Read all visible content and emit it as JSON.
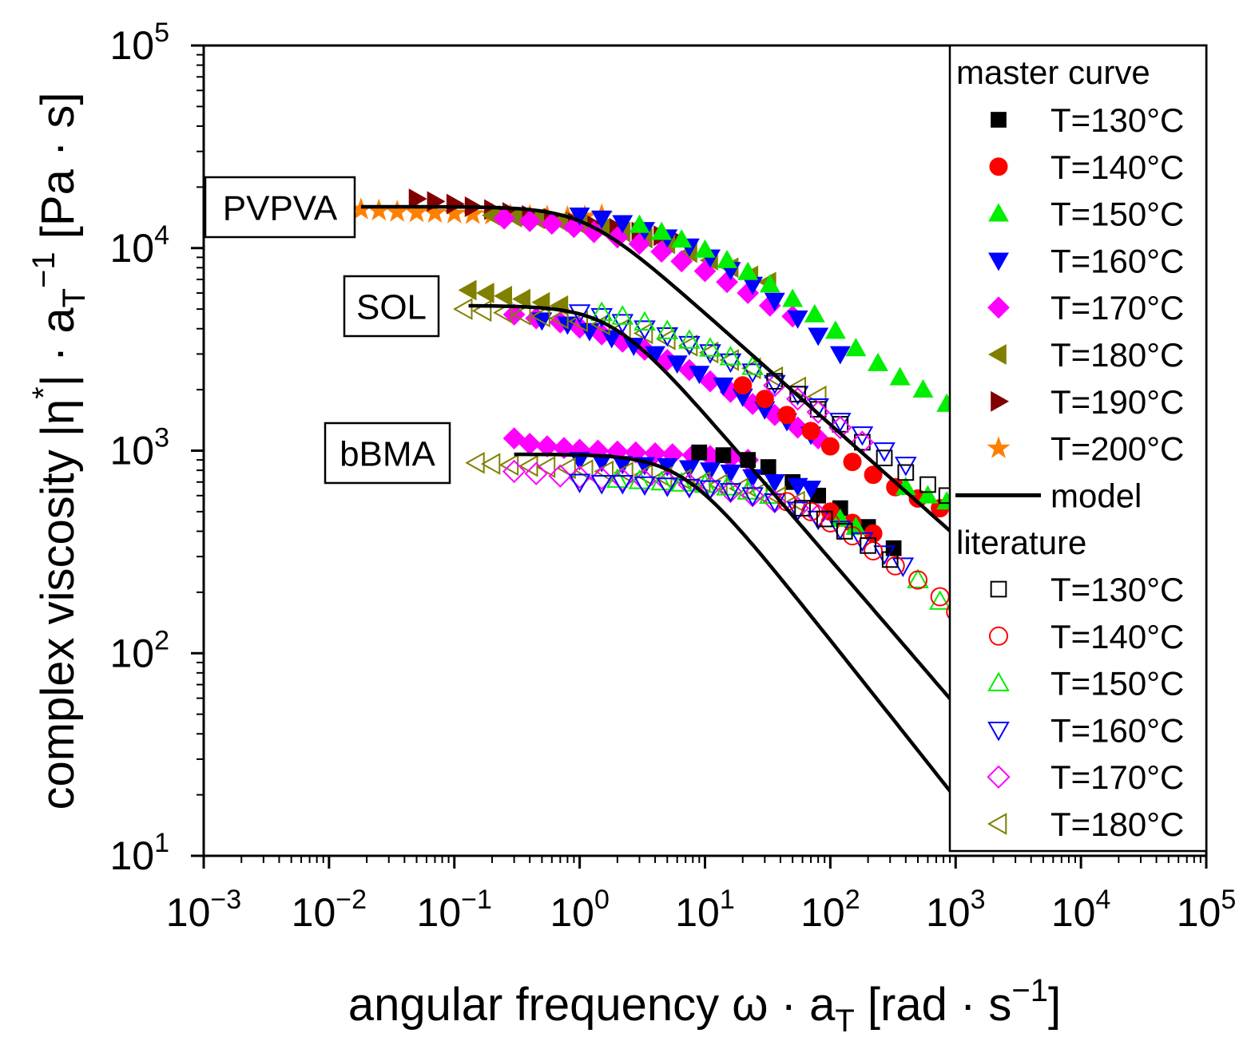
{
  "chart_data": {
    "type": "scatter",
    "scale": "log-log",
    "xlabel": {
      "main": "angular frequency ω · a",
      "sub": "T",
      "unit_open": " [rad · s",
      "unit_sup": "−1",
      "unit_close": "]"
    },
    "ylabel": {
      "main": "complex viscosity |η",
      "sup_star": "*",
      "mid": "| · a",
      "sub": "T",
      "sup": "−1",
      "unit": " [Pa · s]"
    },
    "xlim_exp": [
      -3,
      5
    ],
    "ylim_exp": [
      1,
      5
    ],
    "x_ticks": [
      {
        "base": "10",
        "exp": "−3"
      },
      {
        "base": "10",
        "exp": "−2"
      },
      {
        "base": "10",
        "exp": "−1"
      },
      {
        "base": "10",
        "exp": "0"
      },
      {
        "base": "10",
        "exp": "1"
      },
      {
        "base": "10",
        "exp": "2"
      },
      {
        "base": "10",
        "exp": "3"
      },
      {
        "base": "10",
        "exp": "4"
      },
      {
        "base": "10",
        "exp": "5"
      }
    ],
    "y_ticks": [
      {
        "base": "10",
        "exp": "1"
      },
      {
        "base": "10",
        "exp": "2"
      },
      {
        "base": "10",
        "exp": "3"
      },
      {
        "base": "10",
        "exp": "4"
      },
      {
        "base": "10",
        "exp": "5"
      }
    ],
    "legend": {
      "placement": "top-right",
      "master_title": "master curve",
      "literature_title": "literature",
      "master": [
        {
          "label": "T=130°C",
          "marker": "square",
          "color": "#000000",
          "filled": true
        },
        {
          "label": "T=140°C",
          "marker": "circle",
          "color": "#ff0000",
          "filled": true
        },
        {
          "label": "T=150°C",
          "marker": "triangle-up",
          "color": "#00ee00",
          "filled": true
        },
        {
          "label": "T=160°C",
          "marker": "triangle-down",
          "color": "#0000ff",
          "filled": true
        },
        {
          "label": "T=170°C",
          "marker": "diamond",
          "color": "#ff00ff",
          "filled": true
        },
        {
          "label": "T=180°C",
          "marker": "triangle-left",
          "color": "#808000",
          "filled": true
        },
        {
          "label": "T=190°C",
          "marker": "triangle-right",
          "color": "#800000",
          "filled": true
        },
        {
          "label": "T=200°C",
          "marker": "star",
          "color": "#ff8000",
          "filled": true
        }
      ],
      "model_label": "model",
      "literature": [
        {
          "label": "T=130°C",
          "marker": "square",
          "color": "#000000",
          "filled": false
        },
        {
          "label": "T=140°C",
          "marker": "circle",
          "color": "#ff0000",
          "filled": false
        },
        {
          "label": "T=150°C",
          "marker": "triangle-up",
          "color": "#00ee00",
          "filled": false
        },
        {
          "label": "T=160°C",
          "marker": "triangle-down",
          "color": "#0000ff",
          "filled": false
        },
        {
          "label": "T=170°C",
          "marker": "diamond",
          "color": "#ff00ff",
          "filled": false
        },
        {
          "label": "T=180°C",
          "marker": "triangle-left",
          "color": "#808000",
          "filled": false
        }
      ]
    },
    "annotations": [
      {
        "label": "PVPVA",
        "at_x": 0.02,
        "at_y": 16000
      },
      {
        "label": "SOL",
        "at_x": 0.13,
        "at_y": 5200
      },
      {
        "label": "bBMA",
        "at_x": 0.28,
        "at_y": 960
      }
    ],
    "models": [
      {
        "name": "PVPVA",
        "eta0": 16000,
        "lambda": 0.9,
        "n": 0.45,
        "x_range": [
          0.018,
          1000
        ]
      },
      {
        "name": "SOL",
        "eta0": 5200,
        "lambda": 0.55,
        "n": 0.28,
        "x_range": [
          0.13,
          1000
        ]
      },
      {
        "name": "bBMA",
        "eta0": 960,
        "lambda": 0.15,
        "n": 0.22,
        "x_range": [
          0.3,
          1000
        ]
      }
    ],
    "series": [
      {
        "name": "PVPVA master T=200°C",
        "marker": "star",
        "color": "#ff8000",
        "filled": true,
        "x": [
          0.018,
          0.025,
          0.035,
          0.05,
          0.07,
          0.1,
          0.14,
          0.2,
          0.28,
          0.4,
          0.55,
          0.8,
          1.1,
          1.5
        ],
        "y": [
          15500,
          15300,
          15100,
          15000,
          14900,
          14800,
          14700,
          14600,
          14500,
          14400,
          14300,
          14200,
          14300,
          14500
        ]
      },
      {
        "name": "PVPVA master T=190°C",
        "marker": "triangle-right",
        "color": "#800000",
        "filled": true,
        "x": [
          0.05,
          0.07,
          0.1,
          0.14,
          0.2,
          0.28,
          0.4,
          0.6,
          0.9,
          1.3,
          2,
          3,
          4.5,
          6
        ],
        "y": [
          17500,
          17000,
          16500,
          16000,
          15500,
          15000,
          14500,
          14000,
          13500,
          13000,
          12500,
          12000,
          11500,
          11000
        ]
      },
      {
        "name": "PVPVA master T=180°C",
        "marker": "triangle-left",
        "color": "#808000",
        "filled": true,
        "x": [
          0.2,
          0.3,
          0.45,
          0.7,
          1,
          1.5,
          2.2,
          3.3,
          5,
          7.5,
          11,
          16,
          23,
          32
        ],
        "y": [
          14500,
          14200,
          14000,
          13500,
          13000,
          12500,
          12000,
          11200,
          10500,
          9500,
          8700,
          8000,
          7300,
          6800
        ]
      },
      {
        "name": "PVPVA master T=170°C",
        "marker": "diamond",
        "color": "#ff00ff",
        "filled": true,
        "x": [
          0.25,
          0.4,
          0.6,
          0.9,
          1.3,
          2,
          3,
          4.5,
          6.5,
          10,
          15,
          22,
          33,
          50
        ],
        "y": [
          14000,
          13600,
          13200,
          12700,
          12000,
          11300,
          10500,
          9600,
          8600,
          7700,
          6800,
          6000,
          5200,
          4600
        ]
      },
      {
        "name": "PVPVA master T=160°C",
        "marker": "triangle-down",
        "color": "#0000ff",
        "filled": true,
        "x": [
          1,
          1.5,
          2.2,
          3.3,
          5,
          7.5,
          11,
          16,
          24,
          36,
          55,
          80,
          120
        ],
        "y": [
          14500,
          14000,
          13300,
          12300,
          11300,
          10200,
          9000,
          7800,
          6600,
          5500,
          4500,
          3700,
          3000
        ]
      },
      {
        "name": "PVPVA master T=150°C",
        "marker": "triangle-up",
        "color": "#00ee00",
        "filled": true,
        "x": [
          3,
          4.5,
          6.5,
          10,
          15,
          22,
          33,
          50,
          75,
          110,
          160,
          240,
          360,
          550,
          850
        ],
        "y": [
          13000,
          12000,
          11000,
          9800,
          8700,
          7600,
          6600,
          5600,
          4700,
          3900,
          3200,
          2700,
          2300,
          2000,
          1700
        ]
      },
      {
        "name": "SOL master T=180°C",
        "marker": "triangle-left",
        "color": "#808000",
        "filled": true,
        "x": [
          0.13,
          0.18,
          0.25,
          0.35,
          0.5,
          0.7
        ],
        "y": [
          6200,
          6000,
          5800,
          5600,
          5400,
          5200
        ]
      },
      {
        "name": "SOL master T=170°C",
        "marker": "diamond",
        "color": "#ff00ff",
        "filled": true,
        "x": [
          0.3,
          0.45,
          0.7,
          1,
          1.5,
          2.2,
          3.3,
          5,
          7.5,
          11,
          16,
          24,
          36,
          55,
          80
        ],
        "y": [
          4700,
          4500,
          4300,
          4050,
          3750,
          3450,
          3150,
          2800,
          2500,
          2200,
          1950,
          1700,
          1500,
          1300,
          1150
        ]
      },
      {
        "name": "SOL master T=160°C",
        "marker": "triangle-down",
        "color": "#0000ff",
        "filled": true,
        "x": [
          0.5,
          0.8,
          1.2,
          1.8,
          2.7,
          4,
          6,
          9,
          14,
          20,
          30,
          45,
          70
        ],
        "y": [
          4400,
          4200,
          3900,
          3600,
          3300,
          3000,
          2700,
          2400,
          2100,
          1850,
          1600,
          1400,
          1200
        ]
      },
      {
        "name": "SOL master T=140°C",
        "marker": "circle",
        "color": "#ff0000",
        "filled": true,
        "x": [
          20,
          30,
          45,
          70,
          100,
          150,
          220,
          330,
          500,
          750
        ],
        "y": [
          2100,
          1800,
          1500,
          1250,
          1050,
          880,
          760,
          660,
          580,
          520
        ]
      },
      {
        "name": "SOL master T=150°C",
        "marker": "triangle-up",
        "color": "#00ee00",
        "filled": true,
        "x": [
          400,
          600,
          850
        ],
        "y": [
          660,
          600,
          560
        ]
      },
      {
        "name": "SOL literature T=180°C",
        "marker": "triangle-left",
        "color": "#808000",
        "filled": false,
        "x": [
          0.12,
          0.17,
          0.25,
          0.35,
          0.5,
          0.7,
          1,
          1.5,
          2.2,
          3.3,
          5,
          7.5,
          11,
          16,
          24,
          36,
          55,
          80
        ],
        "y": [
          5000,
          4900,
          4800,
          4700,
          4600,
          4500,
          4350,
          4200,
          4000,
          3800,
          3550,
          3300,
          3050,
          2800,
          2550,
          2300,
          2050,
          1850
        ]
      },
      {
        "name": "SOL literature T=160°C",
        "marker": "triangle-down",
        "color": "#0000ff",
        "filled": false,
        "x": [
          1,
          1.5,
          2.2,
          3.3,
          5,
          7.5,
          11,
          16,
          24,
          36,
          55,
          80,
          120,
          180,
          270,
          400
        ],
        "y": [
          4800,
          4600,
          4300,
          4000,
          3700,
          3350,
          3050,
          2750,
          2450,
          2150,
          1900,
          1650,
          1400,
          1200,
          1000,
          850
        ]
      },
      {
        "name": "SOL literature T=150°C",
        "marker": "triangle-up",
        "color": "#00ee00",
        "filled": false,
        "x": [
          1.5,
          2.2,
          3.3,
          5,
          7.5,
          11,
          16,
          24
        ],
        "y": [
          4800,
          4600,
          4300,
          3900,
          3500,
          3200,
          2900,
          2600
        ]
      },
      {
        "name": "SOL literature T=130°C",
        "marker": "square",
        "color": "#000000",
        "filled": false,
        "x": [
          36,
          55,
          80,
          120,
          180,
          270,
          400,
          600,
          850
        ],
        "y": [
          2200,
          1900,
          1600,
          1350,
          1100,
          920,
          780,
          680,
          600
        ]
      },
      {
        "name": "SOL literature T=170°C",
        "marker": "diamond",
        "color": "#ff00ff",
        "filled": false,
        "x": [
          36,
          55,
          80,
          120,
          180
        ],
        "y": [
          2100,
          1800,
          1550,
          1300,
          1100
        ]
      },
      {
        "name": "bBMA master T=170°C",
        "marker": "diamond",
        "color": "#ff00ff",
        "filled": true,
        "x": [
          0.3,
          0.4,
          0.55,
          0.75,
          1,
          1.4,
          2,
          2.8,
          4,
          5.5,
          8,
          11,
          16,
          22
        ],
        "y": [
          1150,
          1080,
          1050,
          1030,
          1010,
          1000,
          990,
          980,
          970,
          960,
          950,
          940,
          920,
          900
        ]
      },
      {
        "name": "bBMA master T=130°C",
        "marker": "square",
        "color": "#000000",
        "filled": true,
        "x": [
          9,
          14,
          22,
          32,
          50,
          80,
          120,
          200,
          320
        ],
        "y": [
          980,
          950,
          900,
          830,
          700,
          600,
          520,
          420,
          330
        ]
      },
      {
        "name": "bBMA master T=160°C",
        "marker": "triangle-down",
        "color": "#0000ff",
        "filled": true,
        "x": [
          1,
          1.5,
          2.2,
          3.3,
          5,
          7.5,
          11,
          16,
          24,
          36,
          55,
          70
        ],
        "y": [
          900,
          880,
          860,
          850,
          840,
          820,
          800,
          780,
          740,
          700,
          670,
          650
        ]
      },
      {
        "name": "bBMA master T=140°C",
        "marker": "circle",
        "color": "#ff0000",
        "filled": true,
        "x": [
          100,
          150,
          220
        ],
        "y": [
          500,
          440,
          390
        ]
      },
      {
        "name": "bBMA master T=150°C",
        "marker": "triangle-up",
        "color": "#00ee00",
        "filled": true,
        "x": [
          120,
          160
        ],
        "y": [
          460,
          420
        ]
      },
      {
        "name": "bBMA literature T=180°C",
        "marker": "triangle-left",
        "color": "#808000",
        "filled": false,
        "x": [
          0.15,
          0.2,
          0.28,
          0.4,
          0.55,
          0.8,
          1.1,
          1.6,
          2.3,
          3.3,
          4.7,
          6.7,
          9.5,
          13,
          19,
          27,
          38,
          54
        ],
        "y": [
          870,
          860,
          850,
          840,
          830,
          820,
          800,
          790,
          780,
          760,
          740,
          720,
          700,
          680,
          650,
          620,
          590,
          560
        ]
      },
      {
        "name": "bBMA literature T=170°C",
        "marker": "diamond",
        "color": "#ff00ff",
        "filled": false,
        "x": [
          0.3,
          0.45,
          0.7,
          1,
          1.5,
          2.2,
          3.3,
          5,
          7.5,
          11,
          16,
          24,
          36,
          55,
          80
        ],
        "y": [
          790,
          770,
          750,
          740,
          730,
          720,
          710,
          700,
          680,
          660,
          630,
          600,
          560,
          520,
          480
        ]
      },
      {
        "name": "bBMA literature T=150°C",
        "marker": "triangle-up",
        "color": "#00ee00",
        "filled": false,
        "x": [
          2,
          3,
          4.5,
          6.5,
          10,
          15,
          22,
          33,
          500,
          750
        ],
        "y": [
          720,
          710,
          700,
          690,
          680,
          660,
          630,
          600,
          230,
          180
        ]
      },
      {
        "name": "bBMA literature T=160°C",
        "marker": "triangle-down",
        "color": "#0000ff",
        "filled": false,
        "x": [
          1,
          1.5,
          2.2,
          3.3,
          5,
          7.5,
          11,
          16,
          24,
          36,
          55,
          80,
          120,
          180,
          270,
          380
        ],
        "y": [
          700,
          690,
          690,
          680,
          670,
          660,
          650,
          630,
          600,
          560,
          510,
          460,
          410,
          360,
          310,
          270
        ]
      },
      {
        "name": "bBMA literature T=140°C",
        "marker": "circle",
        "color": "#ff0000",
        "filled": false,
        "x": [
          45,
          70,
          100,
          150,
          220,
          330,
          500,
          750,
          1000
        ],
        "y": [
          560,
          500,
          440,
          380,
          320,
          270,
          230,
          190,
          160
        ]
      },
      {
        "name": "bBMA literature T=130°C",
        "marker": "square",
        "color": "#000000",
        "filled": false,
        "x": [
          60,
          90,
          130,
          200,
          300
        ],
        "y": [
          520,
          460,
          400,
          340,
          290
        ]
      }
    ]
  }
}
